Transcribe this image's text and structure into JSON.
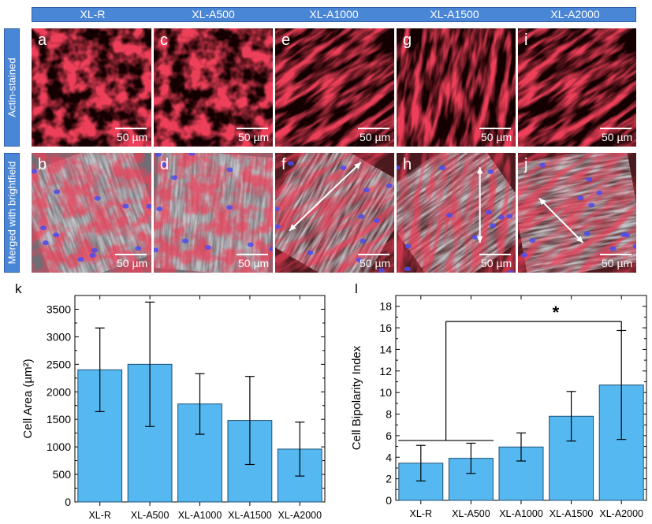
{
  "columns": [
    "XL-R",
    "XL-A500",
    "XL-A1000",
    "XL-A1500",
    "XL-A2000"
  ],
  "rows": [
    "Actin-stained",
    "Merged with brightfield"
  ],
  "panels": {
    "top": [
      "a",
      "c",
      "e",
      "g",
      "i"
    ],
    "bottom": [
      "b",
      "d",
      "f",
      "h",
      "j"
    ]
  },
  "scale_bar": "50 µm",
  "colors": {
    "header": "#4a86d6",
    "bar_fill": "#56b8f0",
    "actin_red": "#d4121e",
    "nucleus_blue": "#4a4cf0"
  },
  "arrow_icons": [
    "double-arrow-diagonal-icon",
    "double-arrow-vertical-icon",
    "double-arrow-diagonal-icon"
  ],
  "chart_data": [
    {
      "label": "k",
      "type": "bar",
      "categories": [
        "XL-R",
        "XL-A500",
        "XL-A1000",
        "XL-A1500",
        "XL-A2000"
      ],
      "values": [
        2400,
        2500,
        1780,
        1480,
        960
      ],
      "errors": [
        760,
        1130,
        550,
        800,
        490
      ],
      "ylabel": "Cell Area (µm²)",
      "ylim": [
        0,
        3750
      ],
      "yticks": [
        "0",
        "500",
        "1000",
        "1500",
        "2000",
        "2500",
        "3000",
        "3500"
      ]
    },
    {
      "label": "l",
      "type": "bar",
      "categories": [
        "XL-R",
        "XL-A500",
        "XL-A1000",
        "XL-A1500",
        "XL-A2000"
      ],
      "values": [
        3.45,
        3.9,
        4.95,
        7.8,
        10.7
      ],
      "errors": [
        1.65,
        1.4,
        1.3,
        2.3,
        5.05
      ],
      "ylabel": "Cell Bipolarity Index",
      "ylim": [
        0,
        19
      ],
      "yticks": [
        "0",
        "2",
        "4",
        "6",
        "8",
        "10",
        "12",
        "14",
        "16",
        "18"
      ],
      "significance": "*"
    }
  ]
}
